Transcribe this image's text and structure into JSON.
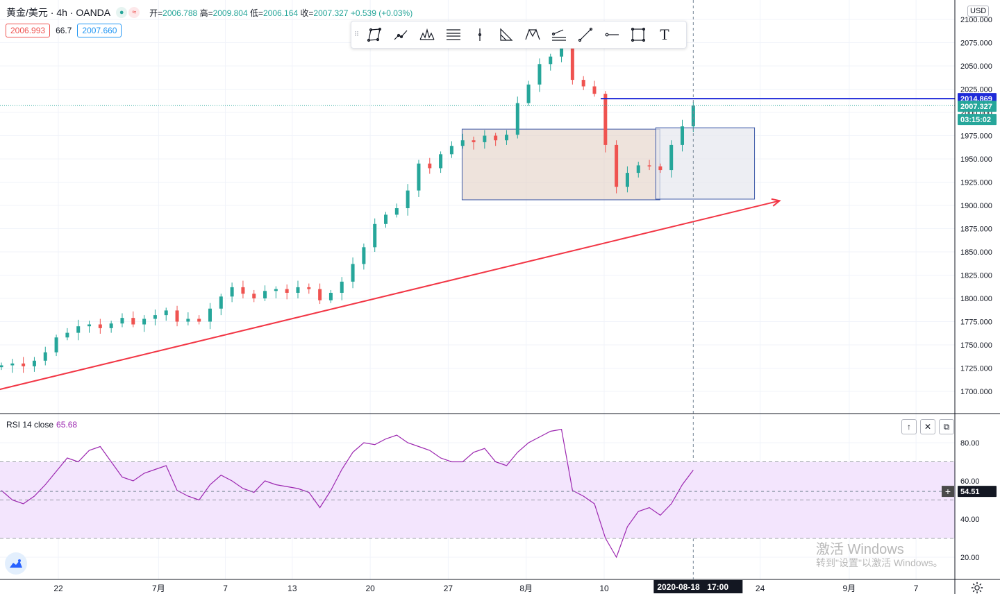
{
  "header": {
    "symbol": "黄金/美元 · 4h · OANDA",
    "dot1": "●",
    "dot2": "≈",
    "ohlc": [
      {
        "label": "开=",
        "value": "2006.788"
      },
      {
        "label": "高=",
        "value": "2009.804"
      },
      {
        "label": "低=",
        "value": "2006.164"
      },
      {
        "label": "收=",
        "value": "2007.327"
      },
      {
        "label": "",
        "value": "+0.539 (+0.03%)"
      }
    ],
    "sell_price": "2006.993",
    "spread": "66.7",
    "buy_price": "2007.660"
  },
  "toolbar": {
    "grip": "⠿",
    "tools": [
      "polygon-icon",
      "trend-line-icon",
      "pattern-icon",
      "fib-icon",
      "vertical-line-icon",
      "triangle-icon",
      "xabcd-icon",
      "parallel-channel-icon",
      "line-icon",
      "horizontal-ray-icon",
      "rectangle-icon",
      "text-icon"
    ],
    "text_tool": "T"
  },
  "currency": "USD",
  "rsi": {
    "label": "RSI 14 close",
    "value": "65.68",
    "buttons": [
      "↑",
      "✕",
      "⧉"
    ]
  },
  "watermark": {
    "line1": "激活 Windows",
    "line2": "转到\"设置\"以激活 Windows。"
  },
  "colors": {
    "up": "#26a69a",
    "down": "#ef5350",
    "trendline": "#f23645",
    "rsi_line": "#9c27b0",
    "rsi_band": "#f3e5fd",
    "hline": "#1e2ad8",
    "zone_fill": "#e3d0c4",
    "zone2_fill": "#e5e7ee",
    "zone_border": "#3e5aa8"
  },
  "chart_data": [
    {
      "type": "candlestick",
      "ylim": [
        1680,
        2105
      ],
      "y_ticks": [
        1700,
        1725,
        1750,
        1775,
        1800,
        1825,
        1850,
        1875,
        1900,
        1925,
        1950,
        1975,
        2000,
        2025,
        2050,
        2075,
        2100
      ],
      "y_tick_labels": [
        "1700.000",
        "1725.000",
        "1750.000",
        "1775.000",
        "1800.000",
        "1825.000",
        "1850.000",
        "1875.000",
        "1900.000",
        "1925.000",
        "1950.000",
        "1975.000",
        "2000.000",
        "2025.000",
        "2050.000",
        "2075.000",
        "2100.000"
      ],
      "x_tick_labels": [
        "22",
        "7月",
        "7",
        "13",
        "20",
        "27",
        "8月",
        "10",
        "24",
        "9月",
        "7"
      ],
      "x_tick_dates": [
        "2020-06-22",
        "2020-07-01",
        "2020-07-07",
        "2020-07-13",
        "2020-07-20",
        "2020-07-27",
        "2020-08-03",
        "2020-08-10",
        "2020-08-24",
        "2020-09-01",
        "2020-09-07"
      ],
      "closes": [
        1728,
        1730,
        1727,
        1733,
        1742,
        1758,
        1763,
        1770,
        1772,
        1768,
        1773,
        1779,
        1772,
        1778,
        1782,
        1787,
        1775,
        1778,
        1775,
        1789,
        1802,
        1812,
        1805,
        1800,
        1808,
        1810,
        1806,
        1812,
        1810,
        1798,
        1806,
        1818,
        1837,
        1855,
        1880,
        1890,
        1897,
        1916,
        1945,
        1940,
        1955,
        1964,
        1970,
        1968,
        1975,
        1970,
        1976,
        2010,
        2030,
        2052,
        2060,
        2070,
        2035,
        2028,
        2020,
        1965,
        1920,
        1935,
        1943,
        1942,
        1938,
        1965,
        1985,
        2007.327
      ],
      "close_dates": [
        "2020-06-17",
        "2020-06-19",
        "2020-06-21",
        "2020-06-23",
        "2020-06-25",
        "2020-06-27",
        "2020-06-29",
        "2020-07-01",
        "2020-07-03",
        "2020-07-05",
        "2020-07-07",
        "2020-07-09",
        "2020-07-11",
        "2020-07-13",
        "2020-07-15",
        "2020-07-17",
        "2020-07-19",
        "2020-07-21",
        "2020-07-20",
        "2020-07-22",
        "2020-07-24",
        "2020-07-26",
        "2020-07-28",
        "2020-07-27",
        "2020-07-29",
        "2020-07-31",
        "2020-08-02",
        "2020-08-01",
        "2020-08-03",
        "2020-08-02",
        "2020-08-04",
        "2020-08-06",
        "2020-08-08",
        "2020-08-10",
        "2020-08-09",
        "2020-08-11",
        "2020-08-13",
        "2020-08-12",
        "2020-08-14",
        "2020-08-16",
        "2020-08-15",
        "2020-08-17",
        "2020-08-19",
        "2020-08-18",
        "2020-08-20",
        "2020-08-19",
        "2020-08-21",
        "2020-08-20",
        "2020-08-22",
        "2020-08-21",
        "2020-08-23",
        "2020-08-22",
        "2020-08-24",
        "2020-08-23",
        "2020-08-25",
        "2020-08-24",
        "2020-08-26",
        "2020-08-25",
        "2020-08-27",
        "2020-08-26",
        "2020-08-28",
        "2020-08-27",
        "2020-08-29",
        "2020-08-28"
      ],
      "current_price": "2007.327",
      "countdown": "03:15:02",
      "horizontal_line": "2014.869",
      "rectangle_zone": {
        "from": 1906,
        "to": 1982
      },
      "trendline": {
        "from": [
          1700,
          "2020-06-16"
        ],
        "to": [
          1905,
          "2020-08-24"
        ]
      },
      "crosshair_date": "2020-08-18",
      "crosshair_time": "17:00"
    },
    {
      "type": "line",
      "series": [
        {
          "name": "RSI 14 close",
          "values": [
            55,
            50,
            48,
            52,
            58,
            65,
            72,
            70,
            76,
            78,
            70,
            62,
            60,
            64,
            66,
            68,
            55,
            52,
            50,
            58,
            63,
            60,
            56,
            54,
            60,
            58,
            57,
            56,
            54,
            46,
            55,
            66,
            75,
            80,
            79,
            82,
            84,
            80,
            78,
            76,
            72,
            70,
            70,
            75,
            77,
            70,
            68,
            75,
            80,
            83,
            86,
            87,
            55,
            52,
            48,
            30,
            20,
            36,
            44,
            46,
            42,
            48,
            58,
            65.68
          ]
        }
      ],
      "ylim": [
        10,
        90
      ],
      "y_ticks": [
        20,
        40,
        60,
        80
      ],
      "y_tick_labels": [
        "20.00",
        "40.00",
        "60.00",
        "80.00"
      ],
      "band": [
        30,
        70
      ],
      "crosshair_value": "54.51"
    }
  ]
}
